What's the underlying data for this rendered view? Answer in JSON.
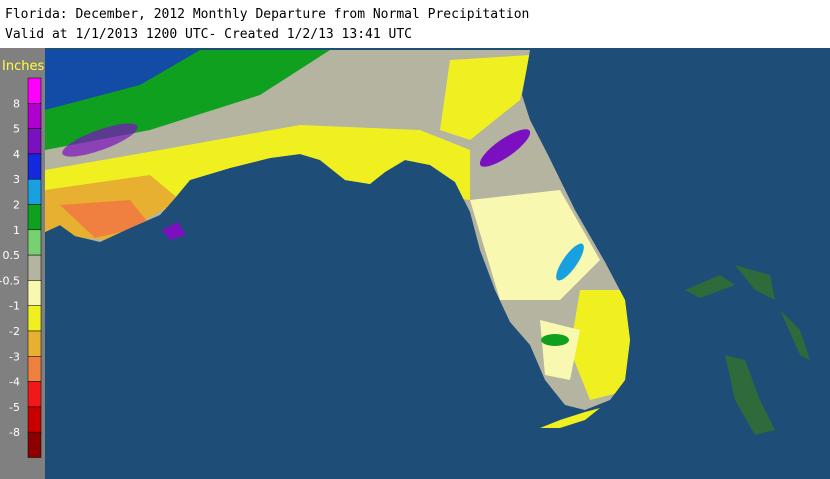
{
  "header": {
    "title": "Florida: December, 2012 Monthly Departure from Normal Precipitation",
    "subtitle": "Valid at 1/1/2013 1200 UTC- Created 1/2/13 13:41 UTC"
  },
  "legend": {
    "title": "Inches",
    "labels": [
      "8",
      "5",
      "4",
      "3",
      "2",
      "1",
      "0.5",
      "-0.5",
      "-1",
      "-2",
      "-3",
      "-4",
      "-5",
      "-8"
    ],
    "colors": [
      "#ff00ff",
      "#b000d0",
      "#7a10c0",
      "#1428e0",
      "#18a0e0",
      "#10a020",
      "#78d070",
      "#b4b4a0",
      "#f8f8b0",
      "#f0f020",
      "#e8b030",
      "#f08040",
      "#f01818",
      "#c80000",
      "#8c0000"
    ]
  }
}
